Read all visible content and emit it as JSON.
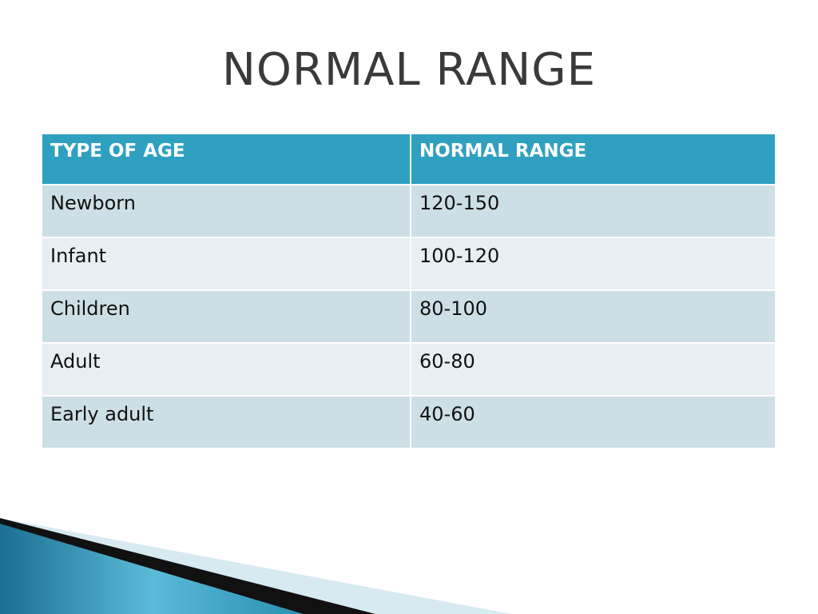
{
  "title": "NORMAL RANGE",
  "table": {
    "header": [
      "TYPE OF AGE",
      "NORMAL RANGE"
    ],
    "rows": [
      [
        "Newborn",
        "120-150"
      ],
      [
        "Infant",
        "100-120"
      ],
      [
        "Children",
        "80-100"
      ],
      [
        "Adult",
        "60-80"
      ],
      [
        "Early adult",
        "40-60"
      ]
    ]
  }
}
